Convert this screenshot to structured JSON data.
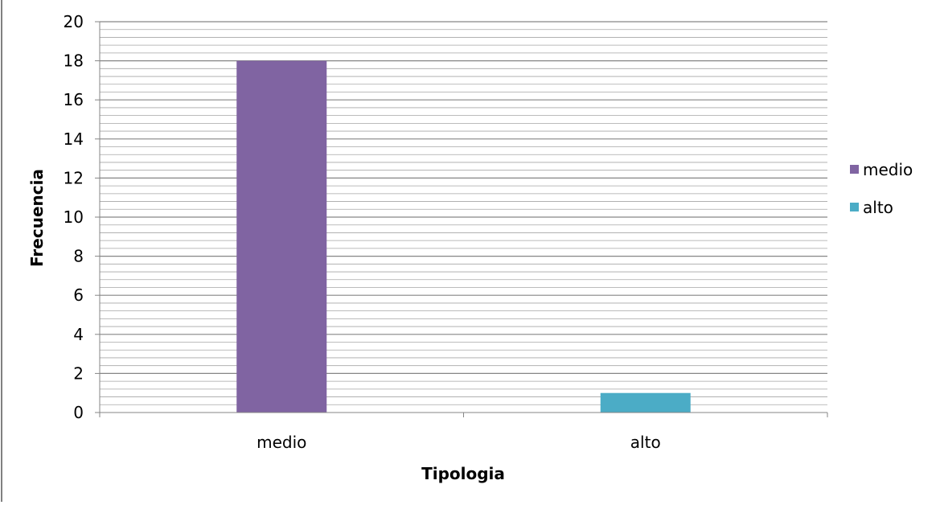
{
  "chart_data": {
    "type": "bar",
    "title": "",
    "xlabel": "Tipologia",
    "ylabel": "Frecuencia",
    "categories": [
      "medio",
      "alto"
    ],
    "values": [
      18,
      1
    ],
    "colors": [
      "#8064a2",
      "#4bacc6"
    ],
    "ylim": [
      0,
      20
    ],
    "yticks": [
      0,
      2,
      4,
      6,
      8,
      10,
      12,
      14,
      16,
      18,
      20
    ],
    "grid": true,
    "minor_grid_step": 0.4,
    "legend": {
      "position": "right",
      "entries": [
        {
          "label": "medio",
          "color": "#8064a2"
        },
        {
          "label": "alto",
          "color": "#4bacc6"
        }
      ]
    }
  }
}
